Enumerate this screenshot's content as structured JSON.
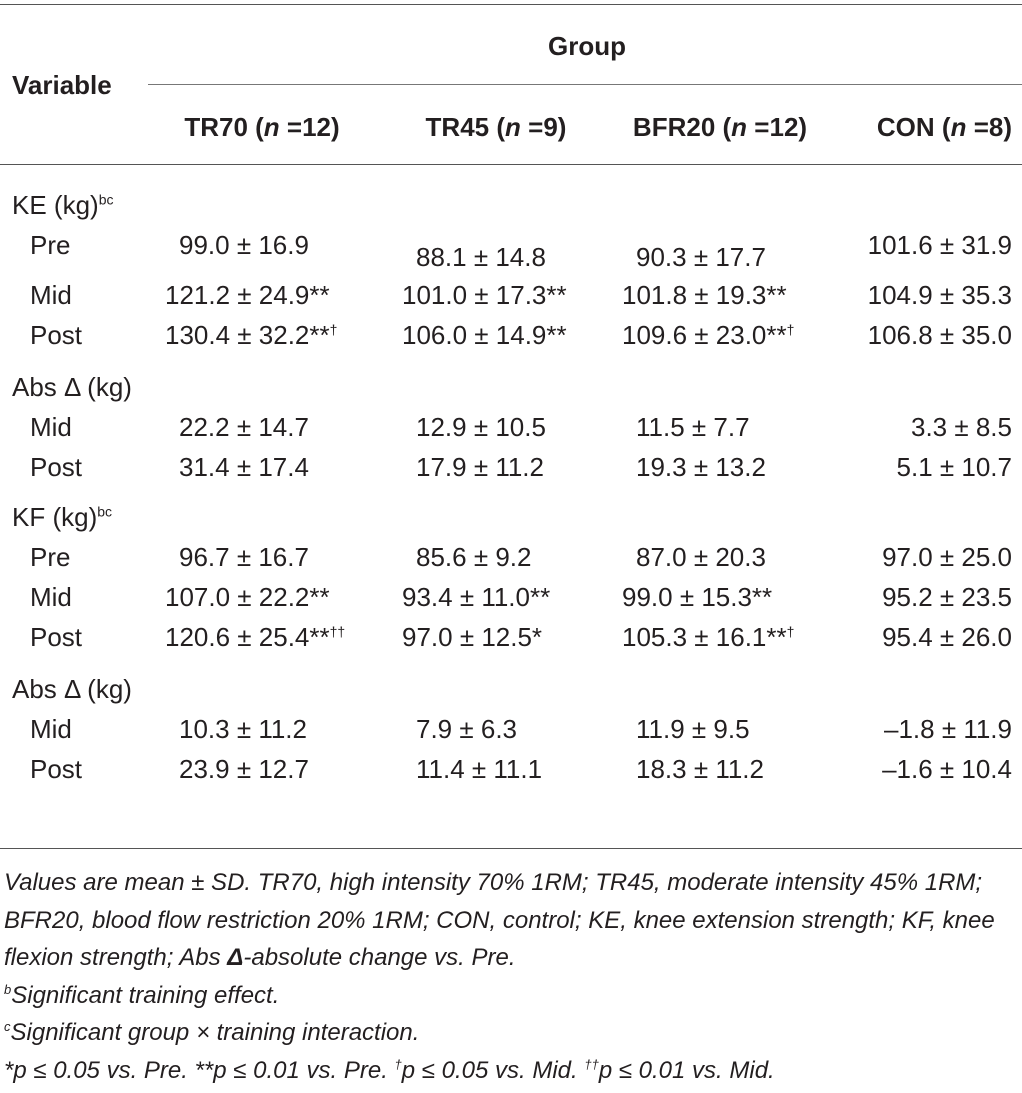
{
  "header": {
    "variable": "Variable",
    "group": "Group",
    "columns": [
      {
        "name": "TR70 (",
        "n_label": "n",
        "n_value": " =12)"
      },
      {
        "name": "TR45 (",
        "n_label": "n",
        "n_value": " =9)"
      },
      {
        "name": "BFR20 (",
        "n_label": "n",
        "n_value": " =12)"
      },
      {
        "name": "CON (",
        "n_label": "n",
        "n_value": " =8)"
      }
    ]
  },
  "rows": [
    {
      "label": "KE (kg)",
      "sup": "bc",
      "type": "section",
      "cells": []
    },
    {
      "label": "Pre",
      "type": "sub",
      "cells": [
        {
          "v": "99.0 ± 16.9",
          "s": ""
        },
        {
          "v": "88.1 ± 14.8",
          "s": ""
        },
        {
          "v": "90.3 ± 17.7",
          "s": ""
        },
        {
          "v": "101.6 ± 31.9",
          "s": ""
        }
      ]
    },
    {
      "label": "Mid",
      "type": "sub",
      "cells": [
        {
          "v": "121.2 ± 24.9**",
          "s": ""
        },
        {
          "v": "101.0 ± 17.3**",
          "s": ""
        },
        {
          "v": "101.8 ± 19.3**",
          "s": ""
        },
        {
          "v": "104.9 ± 35.3",
          "s": ""
        }
      ]
    },
    {
      "label": "Post",
      "type": "sub",
      "cells": [
        {
          "v": "130.4 ± 32.2**",
          "s": "†"
        },
        {
          "v": "106.0 ± 14.9**",
          "s": ""
        },
        {
          "v": "109.6 ± 23.0**",
          "s": "†"
        },
        {
          "v": "106.8 ± 35.0",
          "s": ""
        }
      ]
    },
    {
      "label": "Abs Δ (kg)",
      "sup": "",
      "type": "section",
      "cells": []
    },
    {
      "label": "Mid",
      "type": "sub",
      "cells": [
        {
          "v": "22.2 ± 14.7",
          "s": ""
        },
        {
          "v": "12.9 ± 10.5",
          "s": ""
        },
        {
          "v": "11.5 ± 7.7",
          "s": ""
        },
        {
          "v": "3.3 ± 8.5",
          "s": ""
        }
      ]
    },
    {
      "label": "Post",
      "type": "sub",
      "cells": [
        {
          "v": "31.4 ± 17.4",
          "s": ""
        },
        {
          "v": "17.9 ± 11.2",
          "s": ""
        },
        {
          "v": "19.3 ± 13.2",
          "s": ""
        },
        {
          "v": "5.1 ± 10.7",
          "s": ""
        }
      ]
    },
    {
      "label": "KF (kg)",
      "sup": "bc",
      "type": "section",
      "cells": []
    },
    {
      "label": "Pre",
      "type": "sub",
      "cells": [
        {
          "v": "96.7 ± 16.7",
          "s": ""
        },
        {
          "v": "85.6 ± 9.2",
          "s": ""
        },
        {
          "v": "87.0 ± 20.3",
          "s": ""
        },
        {
          "v": "97.0 ± 25.0",
          "s": ""
        }
      ]
    },
    {
      "label": "Mid",
      "type": "sub",
      "cells": [
        {
          "v": "107.0 ± 22.2**",
          "s": ""
        },
        {
          "v": "93.4 ± 11.0**",
          "s": ""
        },
        {
          "v": "99.0 ± 15.3**",
          "s": ""
        },
        {
          "v": "95.2 ± 23.5",
          "s": ""
        }
      ]
    },
    {
      "label": "Post",
      "type": "sub",
      "cells": [
        {
          "v": "120.6 ± 25.4**",
          "s": "††"
        },
        {
          "v": "97.0 ± 12.5*",
          "s": ""
        },
        {
          "v": "105.3 ± 16.1**",
          "s": "†"
        },
        {
          "v": "95.4 ± 26.0",
          "s": ""
        }
      ]
    },
    {
      "label": "Abs Δ (kg)",
      "sup": "",
      "type": "section",
      "cells": []
    },
    {
      "label": "Mid",
      "type": "sub",
      "cells": [
        {
          "v": "10.3 ± 11.2",
          "s": ""
        },
        {
          "v": "7.9 ± 6.3",
          "s": ""
        },
        {
          "v": "11.9 ± 9.5",
          "s": ""
        },
        {
          "v": "–1.8 ± 11.9",
          "s": ""
        }
      ]
    },
    {
      "label": "Post",
      "type": "sub",
      "cells": [
        {
          "v": "23.9 ± 12.7",
          "s": ""
        },
        {
          "v": "11.4 ± 11.1",
          "s": ""
        },
        {
          "v": "18.3 ± 11.2",
          "s": ""
        },
        {
          "v": "–1.6 ± 10.4",
          "s": ""
        }
      ]
    }
  ],
  "notes": {
    "line1_a": "Values are mean ± SD. TR70, high intensity 70% 1RM; TR45, moderate intensity 45% 1RM; BFR20, blood flow restriction 20% 1RM; CON, control; KE, knee extension strength; KF, knee flexion strength; Abs ",
    "line1_delta": "Δ",
    "line1_b": "-absolute change vs. Pre.",
    "b_sup": "b",
    "b_text": "Significant training effect.",
    "c_sup": "c",
    "c_text": "Significant group × training interaction.",
    "p1": "*p ≤ 0.05 vs. Pre. **p ≤ 0.01 vs. Pre. ",
    "p2_sup": "†",
    "p2": "p ≤ 0.05 vs. Mid. ",
    "p3_sup": "††",
    "p3": "p ≤ 0.01 vs. Mid."
  }
}
